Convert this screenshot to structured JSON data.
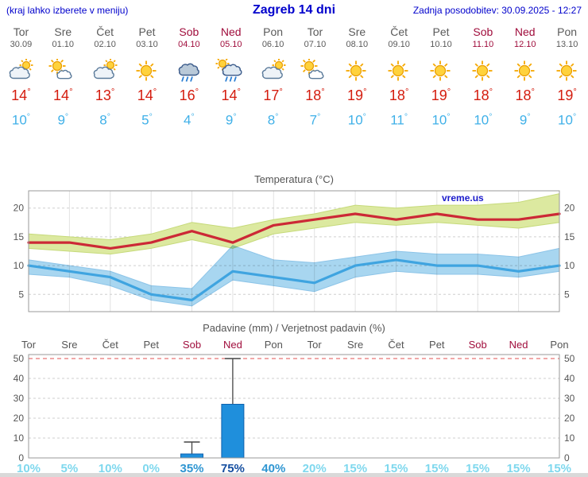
{
  "header": {
    "hint": "(kraj lahko izberete v meniju)",
    "title": "Zagreb 14 dni",
    "updated": "Zadnja posodobitev: 30.09.2025 - 12:27"
  },
  "colors": {
    "header_blue": "#0000cc",
    "day_gray": "#5a5a5a",
    "weekend_red": "#a00d3c",
    "tmax_red": "#d41c0e",
    "tmin_blue": "#3fb0e8",
    "grid_gray": "#cfcfcf",
    "frame_gray": "#9a9a9a",
    "watermark_blue": "#1c1ccc"
  },
  "forecast": {
    "days": [
      {
        "name": "Tor",
        "date": "30.09",
        "icon": "mostly-cloudy",
        "tmax": 14,
        "tmin": 10,
        "weekend": false
      },
      {
        "name": "Sre",
        "date": "01.10",
        "icon": "partly-sunny",
        "tmax": 14,
        "tmin": 9,
        "weekend": false
      },
      {
        "name": "Čet",
        "date": "02.10",
        "icon": "mostly-cloudy",
        "tmax": 13,
        "tmin": 8,
        "weekend": false
      },
      {
        "name": "Pet",
        "date": "03.10",
        "icon": "sunny",
        "tmax": 14,
        "tmin": 5,
        "weekend": false
      },
      {
        "name": "Sob",
        "date": "04.10",
        "icon": "rain",
        "tmax": 16,
        "tmin": 4,
        "weekend": true
      },
      {
        "name": "Ned",
        "date": "05.10",
        "icon": "rain-sun",
        "tmax": 14,
        "tmin": 9,
        "weekend": true
      },
      {
        "name": "Pon",
        "date": "06.10",
        "icon": "mostly-cloudy",
        "tmax": 17,
        "tmin": 8,
        "weekend": false
      },
      {
        "name": "Tor",
        "date": "07.10",
        "icon": "partly-sunny",
        "tmax": 18,
        "tmin": 7,
        "weekend": false
      },
      {
        "name": "Sre",
        "date": "08.10",
        "icon": "sunny",
        "tmax": 19,
        "tmin": 10,
        "weekend": false
      },
      {
        "name": "Čet",
        "date": "09.10",
        "icon": "sunny",
        "tmax": 18,
        "tmin": 11,
        "weekend": false
      },
      {
        "name": "Pet",
        "date": "10.10",
        "icon": "sunny",
        "tmax": 19,
        "tmin": 10,
        "weekend": false
      },
      {
        "name": "Sob",
        "date": "11.10",
        "icon": "sunny",
        "tmax": 18,
        "tmin": 10,
        "weekend": true
      },
      {
        "name": "Ned",
        "date": "12.10",
        "icon": "sunny",
        "tmax": 18,
        "tmin": 9,
        "weekend": true
      },
      {
        "name": "Pon",
        "date": "13.10",
        "icon": "sunny",
        "tmax": 19,
        "tmin": 10,
        "weekend": false
      }
    ]
  },
  "chart_data": [
    {
      "type": "area",
      "title": "Temperatura (°C)",
      "watermark": "vreme.us",
      "ylim": [
        2,
        23
      ],
      "yticks": [
        5,
        10,
        15,
        20
      ],
      "bands": [
        {
          "name": "max-temp-range",
          "color": "#dce9a0",
          "edge": "#c6da7a",
          "upper": [
            15.5,
            15,
            14.5,
            15.5,
            17.5,
            16.5,
            18,
            19,
            20.5,
            20,
            20.5,
            20.5,
            21,
            22.5
          ],
          "lower": [
            13,
            12.5,
            12,
            13,
            14.5,
            13,
            15.5,
            16.5,
            17.5,
            17,
            17.5,
            17,
            16.5,
            17.5
          ]
        },
        {
          "name": "min-temp-range",
          "color": "#a8d6f0",
          "edge": "#8cc4e8",
          "upper": [
            11,
            10,
            9,
            6.5,
            6,
            13.5,
            11,
            10.5,
            11.5,
            12.5,
            12,
            12,
            11.5,
            13
          ],
          "lower": [
            8.5,
            8,
            6.5,
            4,
            3,
            7.5,
            6.5,
            5.5,
            8,
            9,
            8.5,
            8.5,
            8,
            9
          ]
        }
      ],
      "series": [
        {
          "name": "max-temp",
          "color": "#cc2936",
          "values": [
            14,
            14,
            13,
            14,
            16,
            14,
            17,
            18,
            19,
            18,
            19,
            18,
            18,
            19
          ]
        },
        {
          "name": "min-temp",
          "color": "#3fa4e0",
          "values": [
            10,
            9,
            8,
            5,
            4,
            9,
            8,
            7,
            10,
            11,
            10,
            10,
            9,
            10
          ]
        }
      ]
    },
    {
      "type": "bar",
      "title": "Padavine (mm) / Verjetnost padavin (%)",
      "categories": [
        "Tor",
        "Sre",
        "Čet",
        "Pet",
        "Sob",
        "Ned",
        "Pon",
        "Tor",
        "Sre",
        "Čet",
        "Pet",
        "Sob",
        "Ned",
        "Pon"
      ],
      "weekend": [
        false,
        false,
        false,
        false,
        true,
        true,
        false,
        false,
        false,
        false,
        false,
        true,
        true,
        false
      ],
      "ylim": [
        0,
        52
      ],
      "yticks": [
        0,
        10,
        20,
        30,
        40,
        50
      ],
      "red_line_value": 50,
      "bar_color": "#1f8fdc",
      "bar_edge": "#1062ae",
      "precip_mm": [
        0,
        0,
        0,
        0,
        2,
        27,
        0,
        0,
        0,
        0,
        0,
        0,
        0,
        0
      ],
      "precip_max_mm": [
        0,
        0,
        0,
        0,
        8,
        50,
        0,
        0,
        0,
        0,
        0,
        0,
        0,
        0
      ],
      "probability_pct": [
        10,
        5,
        10,
        0,
        35,
        75,
        40,
        20,
        15,
        15,
        15,
        15,
        15,
        15
      ],
      "prob_color_rules": [
        {
          "min": 70,
          "color": "#164fa0"
        },
        {
          "min": 30,
          "color": "#2f96d2"
        },
        {
          "min": 0,
          "color": "#7fd8ee"
        }
      ]
    }
  ]
}
